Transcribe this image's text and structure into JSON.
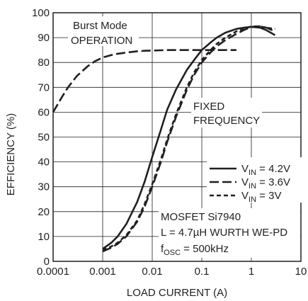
{
  "chart_data": {
    "type": "line",
    "title": "",
    "xlabel": "LOAD CURRENT (A)",
    "ylabel": "EFFICIENCY (%)",
    "xscale": "log",
    "xlim": [
      0.0001,
      10
    ],
    "ylim": [
      0,
      100
    ],
    "grid": true,
    "x_tick_labels": [
      "0.0001",
      "0.001",
      "0.01",
      "0.1",
      "1",
      "10"
    ],
    "x_tick_values": [
      0.0001,
      0.001,
      0.01,
      0.1,
      1,
      10
    ],
    "y_tick_labels": [
      "0",
      "10",
      "20",
      "30",
      "40",
      "50",
      "60",
      "70",
      "80",
      "90",
      "100"
    ],
    "y_tick_values": [
      0,
      10,
      20,
      30,
      40,
      50,
      60,
      70,
      80,
      90,
      100
    ],
    "legend_position": "right",
    "annotations": {
      "burst_mode_line1": "Burst Mode",
      "burst_mode_line2": "OPERATION",
      "fixed_freq_line1": "FIXED",
      "fixed_freq_line2": "FREQUENCY",
      "info_line1": "MOSFET Si7940",
      "info_line2": "L = 4.7µH WURTH WE-PD",
      "info_line3_main": "f",
      "info_line3_sub": "OSC",
      "info_line3_rest": " = 500kHz"
    },
    "series": [
      {
        "name": "V_IN = 4.2V",
        "legend_main": "V",
        "legend_sub": "IN",
        "legend_rest": " = 4.2V",
        "style": "solid",
        "x": [
          0.001,
          0.0015,
          0.002,
          0.003,
          0.005,
          0.007,
          0.01,
          0.015,
          0.02,
          0.03,
          0.05,
          0.07,
          0.1,
          0.15,
          0.2,
          0.3,
          0.5,
          0.7,
          1,
          1.5,
          2,
          3
        ],
        "y": [
          5,
          7.5,
          10,
          15,
          24,
          32,
          42,
          53,
          61,
          69,
          77,
          81,
          85,
          88,
          90,
          92,
          93.5,
          94,
          94.3,
          94,
          93,
          91
        ]
      },
      {
        "name": "V_IN = 3.6V",
        "legend_main": "V",
        "legend_sub": "IN",
        "legend_rest": " = 3.6V",
        "style": "long-dash",
        "x": [
          0.0001,
          0.00015,
          0.0002,
          0.0003,
          0.0005,
          0.0007,
          0.001,
          0.0015,
          0.002,
          0.003,
          0.005,
          0.007,
          0.01,
          0.02,
          0.05,
          0.1,
          0.2,
          0.5
        ],
        "y": [
          60,
          66,
          70,
          74.5,
          78.5,
          80.5,
          82,
          83,
          83.5,
          84,
          84.5,
          84.7,
          84.8,
          85,
          85,
          85,
          85,
          85
        ]
      },
      {
        "name": "V_IN = 3.6V (fixed frequency)",
        "style": "long-dash",
        "x": [
          0.001,
          0.0015,
          0.002,
          0.003,
          0.005,
          0.007,
          0.01,
          0.015,
          0.02,
          0.03,
          0.05,
          0.07,
          0.1,
          0.15,
          0.2,
          0.3,
          0.5,
          0.7,
          1,
          1.5,
          2,
          3
        ],
        "y": [
          4,
          5.5,
          7,
          10,
          16,
          22,
          30,
          40,
          48,
          58,
          69,
          75,
          80,
          84,
          86.5,
          89,
          91.5,
          93,
          94.3,
          94.6,
          94,
          92.5
        ]
      },
      {
        "name": "V_IN = 3V",
        "legend_main": "V",
        "legend_sub": "IN",
        "legend_rest": " = 3V",
        "style": "short-dash",
        "x": [
          0.001,
          0.0015,
          0.002,
          0.003,
          0.005,
          0.007,
          0.01,
          0.015,
          0.02,
          0.03,
          0.05,
          0.07,
          0.1,
          0.15,
          0.2,
          0.3,
          0.5,
          0.7,
          1,
          1.5,
          2,
          3
        ],
        "y": [
          4.5,
          6,
          7.5,
          10.5,
          16.5,
          23,
          31,
          41,
          49,
          59,
          70,
          76,
          81,
          85,
          87.5,
          90,
          92.5,
          93.5,
          94.5,
          94.5,
          94,
          93.5
        ]
      }
    ]
  }
}
